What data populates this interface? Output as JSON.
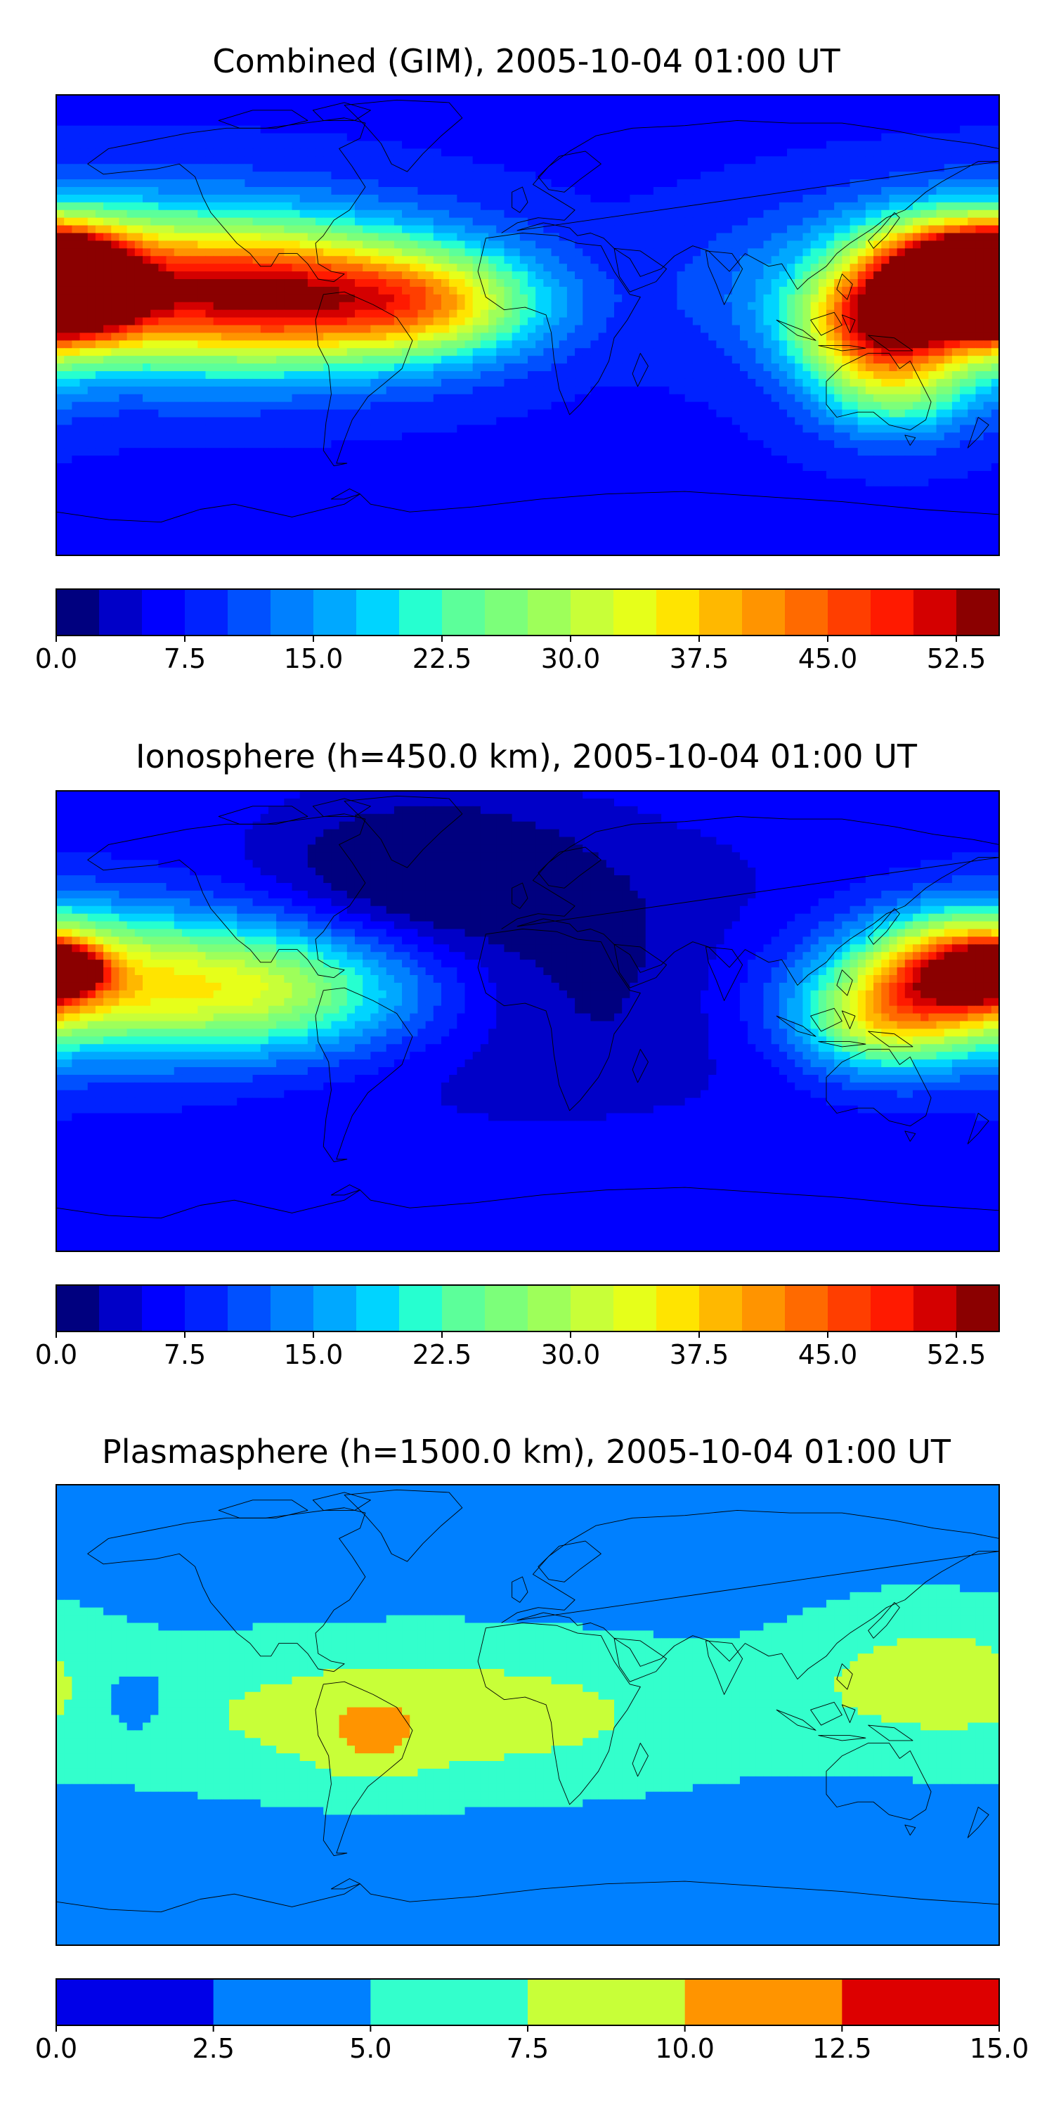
{
  "chart_data": [
    {
      "type": "heatmap",
      "title": "Combined (GIM), 2005-10-04 01:00 UT",
      "colorbar": {
        "levels": [
          0.0,
          2.5,
          5.0,
          7.5,
          10.0,
          12.5,
          15.0,
          17.5,
          20.0,
          22.5,
          25.0,
          27.5,
          30.0,
          32.5,
          35.0,
          37.5,
          40.0,
          42.5,
          45.0,
          47.5,
          50.0,
          52.5,
          55.0
        ],
        "colors": [
          "#00007f",
          "#0000c8",
          "#0000ff",
          "#0022ff",
          "#0050ff",
          "#0080ff",
          "#00a8ff",
          "#00d4ff",
          "#26ffd0",
          "#5cff9a",
          "#7cff7a",
          "#9eff5a",
          "#c8ff38",
          "#e6ff1a",
          "#ffe400",
          "#ffb800",
          "#ff9400",
          "#ff6a00",
          "#ff3e00",
          "#ff1a00",
          "#d40000",
          "#8b0000"
        ],
        "tick_values": [
          0.0,
          7.5,
          15.0,
          22.5,
          30.0,
          37.5,
          45.0,
          52.5
        ],
        "tick_labels": [
          "0.0",
          "7.5",
          "15.0",
          "22.5",
          "30.0",
          "37.5",
          "45.0",
          "52.5"
        ],
        "range": [
          0.0,
          55.0
        ]
      },
      "features": [
        {
          "lon": -150,
          "lat": 15,
          "value": 30,
          "sx": 70,
          "sy": 22
        },
        {
          "lon": -175,
          "lat": 15,
          "value": 40,
          "sx": 18,
          "sy": 14
        },
        {
          "lon": -178,
          "lat": 20,
          "value": 45,
          "sx": 8,
          "sy": 6
        },
        {
          "lon": -90,
          "lat": 10,
          "value": 24,
          "sx": 45,
          "sy": 18
        },
        {
          "lon": -35,
          "lat": 8,
          "value": 18,
          "sx": 30,
          "sy": 14
        },
        {
          "lon": 160,
          "lat": 20,
          "value": 38,
          "sx": 22,
          "sy": 14
        },
        {
          "lon": 177,
          "lat": 20,
          "value": 44,
          "sx": 8,
          "sy": 6
        },
        {
          "lon": 135,
          "lat": 0,
          "value": 30,
          "sx": 22,
          "sy": 14
        },
        {
          "lon": 140,
          "lat": -25,
          "value": 16,
          "sx": 22,
          "sy": 14
        }
      ],
      "base_value": 7
    },
    {
      "type": "heatmap",
      "title": "Ionosphere  (h=450.0 km), 2005-10-04 01:00 UT",
      "colorbar": {
        "levels": [
          0.0,
          2.5,
          5.0,
          7.5,
          10.0,
          12.5,
          15.0,
          17.5,
          20.0,
          22.5,
          25.0,
          27.5,
          30.0,
          32.5,
          35.0,
          37.5,
          40.0,
          42.5,
          45.0,
          47.5,
          50.0,
          52.5,
          55.0
        ],
        "colors": [
          "#00007f",
          "#0000c8",
          "#0000ff",
          "#0022ff",
          "#0050ff",
          "#0080ff",
          "#00a8ff",
          "#00d4ff",
          "#26ffd0",
          "#5cff9a",
          "#7cff7a",
          "#9eff5a",
          "#c8ff38",
          "#e6ff1a",
          "#ffe400",
          "#ffb800",
          "#ff9400",
          "#ff6a00",
          "#ff3e00",
          "#ff1a00",
          "#d40000",
          "#8b0000"
        ],
        "tick_values": [
          0.0,
          7.5,
          15.0,
          22.5,
          30.0,
          37.5,
          45.0,
          52.5
        ],
        "tick_labels": [
          "0.0",
          "7.5",
          "15.0",
          "22.5",
          "30.0",
          "37.5",
          "45.0",
          "52.5"
        ],
        "range": [
          0.0,
          55.0
        ]
      },
      "features": [
        {
          "lon": -150,
          "lat": 15,
          "value": 26,
          "sx": 65,
          "sy": 20
        },
        {
          "lon": -178,
          "lat": 20,
          "value": 34,
          "sx": 10,
          "sy": 6
        },
        {
          "lon": -90,
          "lat": 10,
          "value": 10,
          "sx": 40,
          "sy": 16
        },
        {
          "lon": 165,
          "lat": 20,
          "value": 30,
          "sx": 22,
          "sy": 14
        },
        {
          "lon": 135,
          "lat": 0,
          "value": 20,
          "sx": 22,
          "sy": 14
        },
        {
          "lon": 0,
          "lat": 20,
          "value": -6,
          "sx": 90,
          "sy": 40
        },
        {
          "lon": -40,
          "lat": 60,
          "value": -6,
          "sx": 40,
          "sy": 20
        }
      ],
      "base_value": 7
    },
    {
      "type": "heatmap",
      "title": "Plasmasphere (h=1500.0 km), 2005-10-04 01:00 UT",
      "colorbar": {
        "levels": [
          0.0,
          2.5,
          5.0,
          7.5,
          10.0,
          12.5,
          15.0
        ],
        "colors": [
          "#0000e8",
          "#0080ff",
          "#33ffcc",
          "#c8ff38",
          "#ff9400",
          "#dd0000"
        ],
        "tick_values": [
          0.0,
          2.5,
          5.0,
          7.5,
          10.0,
          12.5,
          15.0
        ],
        "tick_labels": [
          "0.0",
          "2.5",
          "5.0",
          "7.5",
          "10.0",
          "12.5",
          "15.0"
        ],
        "range": [
          0.0,
          15.0
        ]
      },
      "features": [
        {
          "lon": -40,
          "lat": 0,
          "value": 5.2,
          "sx": 90,
          "sy": 22
        },
        {
          "lon": -60,
          "lat": -10,
          "value": 2.4,
          "sx": 14,
          "sy": 12
        },
        {
          "lon": 150,
          "lat": 15,
          "value": 4.2,
          "sx": 35,
          "sy": 22
        },
        {
          "lon": 165,
          "lat": 20,
          "value": 1.5,
          "sx": 6,
          "sy": 5
        },
        {
          "lon": -150,
          "lat": 5,
          "value": -3.0,
          "sx": 12,
          "sy": 10
        }
      ],
      "base_value": 3.8
    }
  ]
}
